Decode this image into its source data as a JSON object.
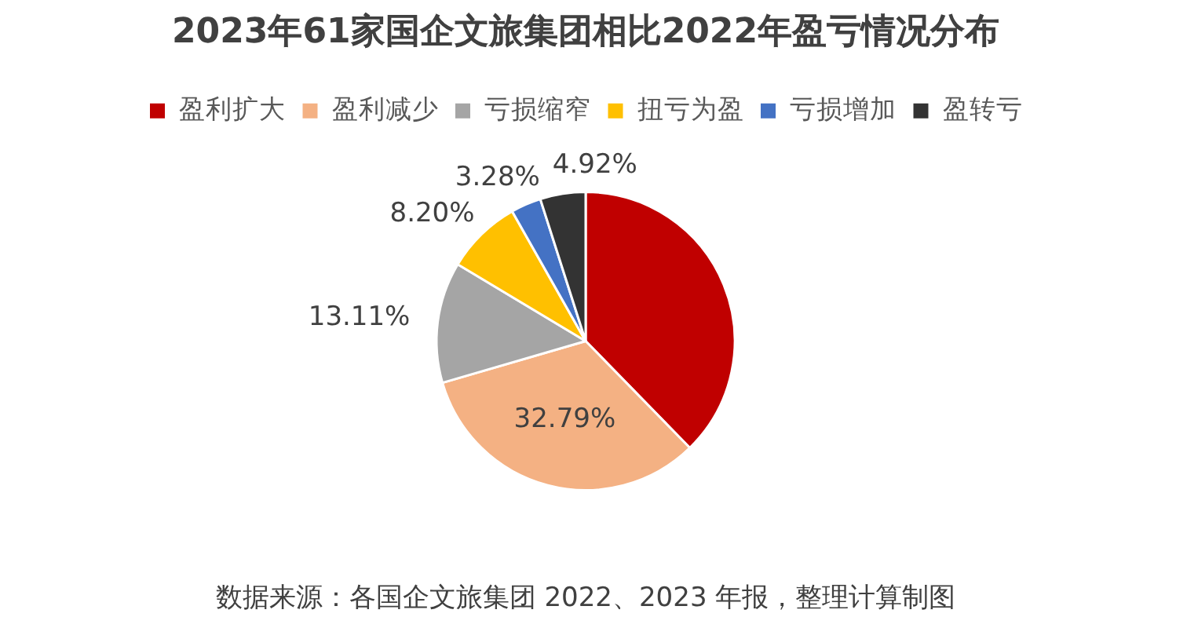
{
  "chart_data": {
    "type": "pie",
    "title": "2023年61家国企文旅集团相比2022年盈亏情况分布",
    "categories": [
      "盈利扩大",
      "盈利减少",
      "亏损缩窄",
      "扭亏为盈",
      "亏损增加",
      "盈转亏"
    ],
    "values": [
      37.7,
      32.79,
      13.11,
      8.2,
      3.28,
      4.92
    ],
    "colors": [
      "#c00000",
      "#f4b183",
      "#a5a5a5",
      "#ffc000",
      "#4472c4",
      "#333333"
    ],
    "value_labels": [
      null,
      "32.79%",
      "13.11%",
      "8.20%",
      "3.28%",
      "4.92%"
    ],
    "legend": "top",
    "annotations": [
      "数据来源：各国企文旅集团 2022、2023 年报，整理计算制图"
    ]
  }
}
